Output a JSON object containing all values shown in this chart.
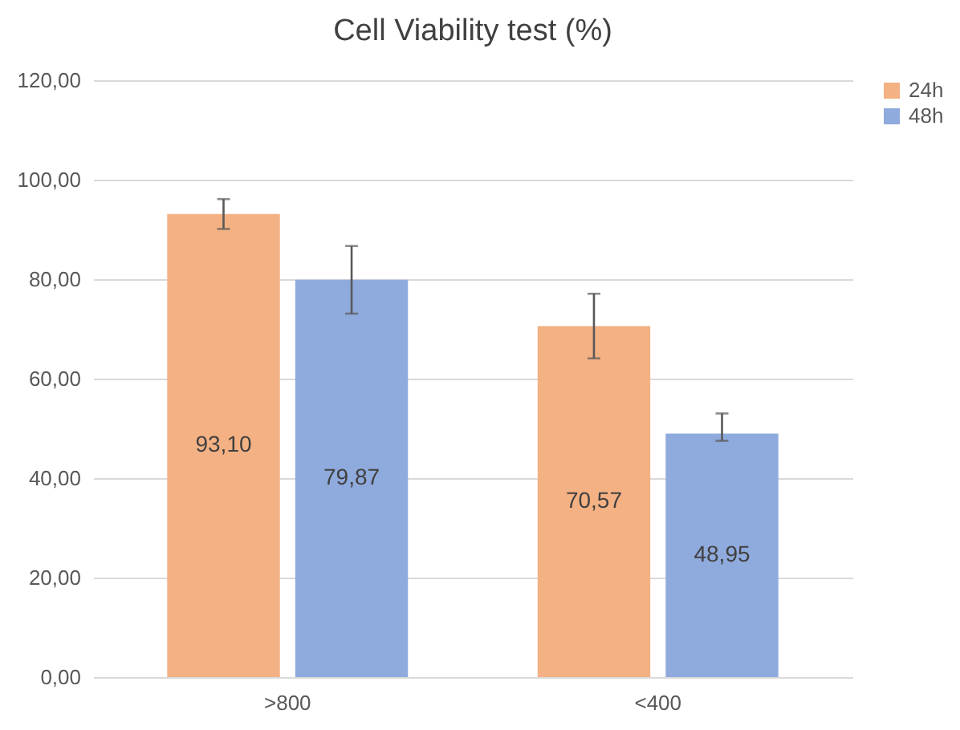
{
  "chart_data": {
    "type": "bar",
    "title": "Cell Viability test (%)",
    "categories": [
      ">800",
      "<400"
    ],
    "series": [
      {
        "name": "24h",
        "color": "#f4b183",
        "values": [
          93.1,
          70.57
        ],
        "value_labels": [
          "93,10",
          "70,57"
        ],
        "errors": [
          3,
          6.5
        ]
      },
      {
        "name": "48h",
        "color": "#8faadc",
        "values": [
          79.87,
          48.95
        ],
        "value_labels": [
          "79,87",
          "48,95"
        ],
        "errors": [
          6.8,
          [
            47.5,
            53.0
          ]
        ]
      }
    ],
    "ylim": [
      0,
      120
    ],
    "yticks": [
      {
        "value": 0,
        "label": "0,00"
      },
      {
        "value": 20,
        "label": "20,00"
      },
      {
        "value": 40,
        "label": "40,00"
      },
      {
        "value": 60,
        "label": "60,00"
      },
      {
        "value": 80,
        "label": "80,00"
      },
      {
        "value": 100,
        "label": "100,00"
      },
      {
        "value": 120,
        "label": "120,00"
      }
    ],
    "grid": "y",
    "legend": "right"
  }
}
